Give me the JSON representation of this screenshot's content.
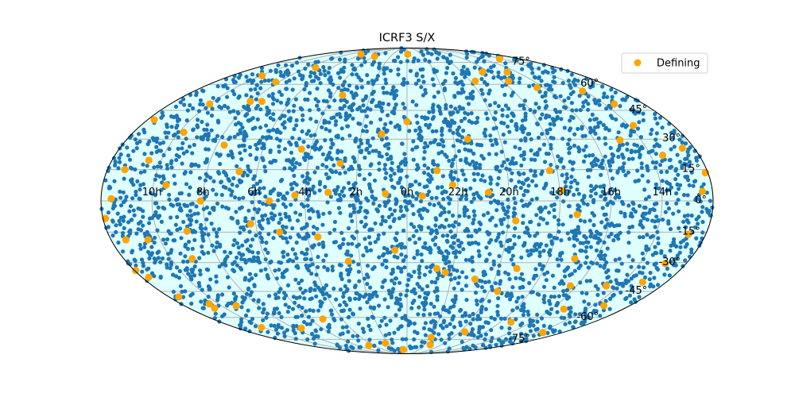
{
  "chart_data": {
    "type": "scatter",
    "projection": "mollweide",
    "title": "ICRF3 S/X",
    "grid": true,
    "legend_position": "top-right",
    "x_tick_labels": [
      "10h",
      "8h",
      "6h",
      "4h",
      "2h",
      "0h",
      "22h",
      "20h",
      "18h",
      "16h",
      "14h"
    ],
    "y_tick_labels": [
      "-75°",
      "-60°",
      "-45°",
      "-30°",
      "-15°",
      "0°",
      "15°",
      "30°",
      "45°",
      "60°",
      "75°"
    ],
    "x_units": "right ascension (hours), increasing to the left",
    "y_units": "declination (degrees)",
    "colors": {
      "sources": "#1f77b4",
      "defining": "#ffa500",
      "background": "#e0ffff",
      "grid": "#b0b0b0"
    },
    "series": [
      {
        "name": "",
        "color": "#1f77b4",
        "distribution": "all-sky, roughly uniform"
      },
      {
        "name": "Defining",
        "color": "#ffa500",
        "points_ra_h_dec_deg": [
          [
            6.4,
            82
          ],
          [
            3.9,
            80
          ],
          [
            23.9,
            82
          ],
          [
            14.1,
            78
          ],
          [
            18.5,
            68
          ],
          [
            16.7,
            68
          ],
          [
            19.7,
            62
          ],
          [
            17.6,
            62
          ],
          [
            8.2,
            61.5
          ],
          [
            7.3,
            71
          ],
          [
            9.9,
            65.5
          ],
          [
            16.4,
            58
          ],
          [
            7.5,
            50
          ],
          [
            8.1,
            50
          ],
          [
            10.0,
            48.5
          ],
          [
            11.7,
            40
          ],
          [
            9.8,
            33.5
          ],
          [
            7.7,
            27
          ],
          [
            10.5,
            19.5
          ],
          [
            11.3,
            15
          ],
          [
            11.6,
            1
          ],
          [
            11.9,
            -8.4
          ],
          [
            11.4,
            -18.7
          ],
          [
            10.5,
            -18.7
          ],
          [
            11.95,
            -34
          ],
          [
            11.7,
            -37.5
          ],
          [
            11.5,
            -48
          ],
          [
            10.5,
            -52
          ],
          [
            9.2,
            -53
          ],
          [
            10.2,
            -66.5
          ],
          [
            7.5,
            -67
          ],
          [
            5.2,
            -61
          ],
          [
            4.6,
            -80
          ],
          [
            2.3,
            -78
          ],
          [
            0.65,
            -84
          ],
          [
            21.3,
            -79.5
          ],
          [
            21.9,
            -73.5
          ],
          [
            19.6,
            -69.5
          ],
          [
            17.3,
            -63
          ],
          [
            13.5,
            -70
          ],
          [
            15.3,
            -55
          ],
          [
            13.4,
            -53
          ],
          [
            16.3,
            -42
          ],
          [
            14.6,
            -42
          ],
          [
            13.1,
            -40
          ],
          [
            12.9,
            -30.5
          ],
          [
            12.7,
            -16
          ],
          [
            12.4,
            4.5
          ],
          [
            12.1,
            13.5
          ],
          [
            12.5,
            25.5
          ],
          [
            13.5,
            22
          ],
          [
            13.8,
            37
          ],
          [
            13.5,
            48.5
          ],
          [
            14.1,
            56
          ],
          [
            14.9,
            29.5
          ],
          [
            18.3,
            14.5
          ],
          [
            17.9,
            5
          ],
          [
            17.3,
            -6.5
          ],
          [
            16.9,
            -28
          ],
          [
            22.8,
            14.5
          ],
          [
            22.2,
            7.6
          ],
          [
            21.4,
            30
          ],
          [
            0.0,
            39
          ],
          [
            1.1,
            32.5
          ],
          [
            2.7,
            18
          ],
          [
            3.5,
            53.5
          ],
          [
            4.4,
            25
          ],
          [
            5.4,
            0
          ],
          [
            6.7,
            14
          ],
          [
            8.1,
            0
          ],
          [
            9.5,
            7.6
          ],
          [
            8.8,
            -14.5
          ],
          [
            9.1,
            -28
          ],
          [
            6.2,
            -11
          ],
          [
            3.6,
            -17.3
          ],
          [
            2.5,
            -29.3
          ],
          [
            0.5,
            -23.8
          ],
          [
            22.7,
            -33
          ],
          [
            20.9,
            -38.5
          ],
          [
            19.6,
            -45
          ],
          [
            19.2,
            -33
          ],
          [
            19.7,
            -9.5
          ],
          [
            20.8,
            4
          ],
          [
            23.4,
            2.3
          ],
          [
            0.85,
            3.4
          ],
          [
            3.1,
            4
          ],
          [
            4.4,
            2.7
          ],
          [
            5.1,
            -15
          ],
          [
            10.6,
            -54.5
          ],
          [
            22.3,
            -35
          ]
        ]
      }
    ],
    "legend": [
      {
        "label": "Defining",
        "color": "#ffa500"
      }
    ]
  }
}
